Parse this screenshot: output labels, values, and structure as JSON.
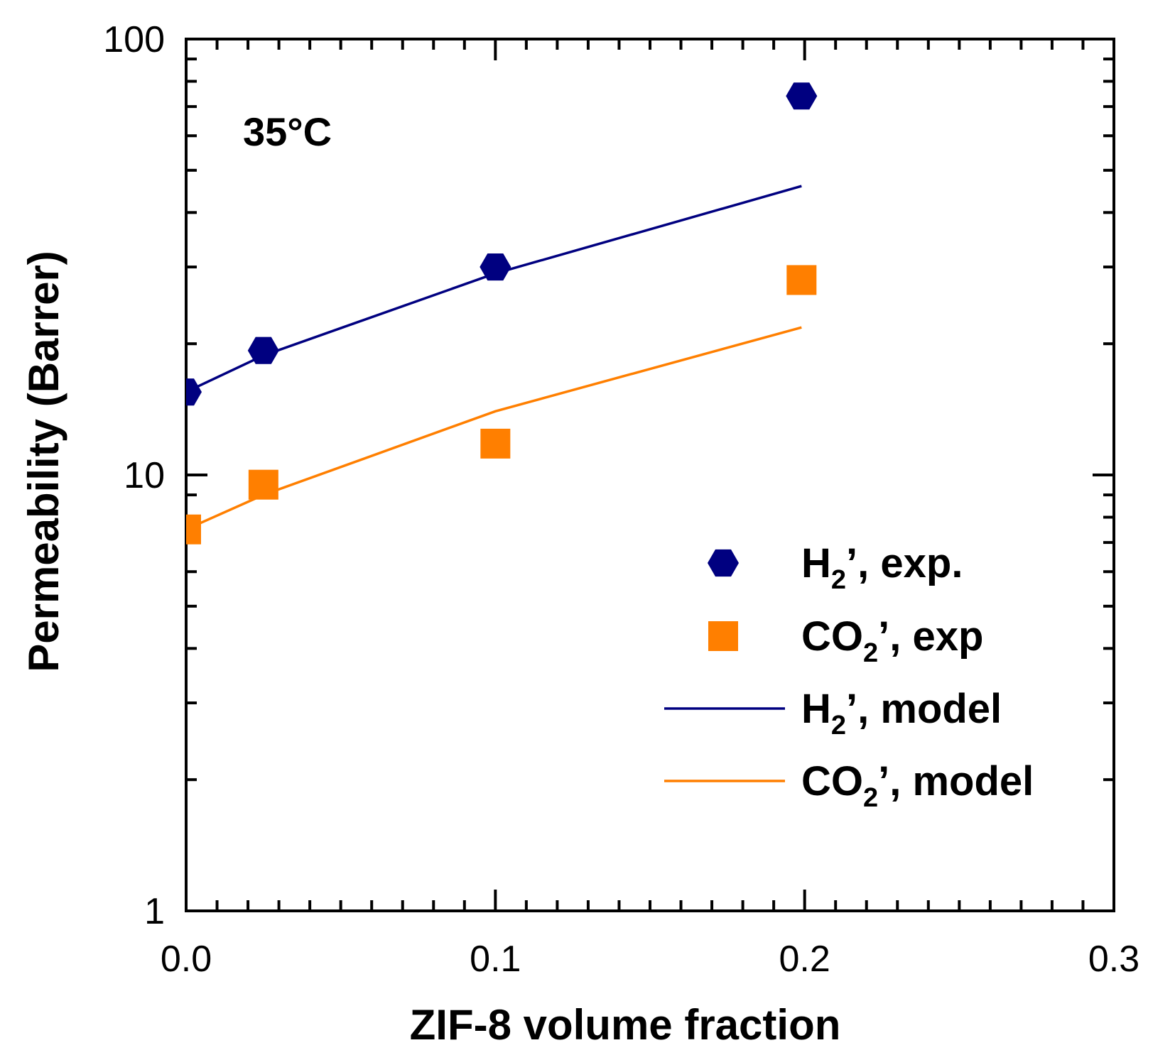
{
  "chart_data": {
    "type": "scatter",
    "title": "",
    "xlabel": "ZIF-8 volume fraction",
    "ylabel": "Permeability (Barrer)",
    "xlim": [
      0.0,
      0.3
    ],
    "ylim": [
      1,
      100
    ],
    "yscale": "log",
    "x_ticks": [
      "0.0",
      "0.1",
      "0.2",
      "0.3"
    ],
    "y_ticks": [
      "1",
      "10",
      "100"
    ],
    "annotation": "35°C",
    "grid": false,
    "legend_position": "right",
    "series": [
      {
        "name": "H2, exp.",
        "legend": {
          "base": "H",
          "sub": "2",
          "rest": "’, exp."
        },
        "kind": "markers",
        "marker": "hexagon",
        "color": "#000080",
        "x": [
          0.0,
          0.025,
          0.1,
          0.199
        ],
        "y": [
          15.5,
          19.3,
          30.0,
          74.0
        ]
      },
      {
        "name": "CO2, exp",
        "legend": {
          "base": "CO",
          "sub": "2",
          "rest": "’, exp"
        },
        "kind": "markers",
        "marker": "square",
        "color": "#ff7f00",
        "x": [
          0.0,
          0.025,
          0.1,
          0.199
        ],
        "y": [
          7.5,
          9.5,
          11.8,
          28.0
        ]
      },
      {
        "name": "H2, model",
        "legend": {
          "base": "H",
          "sub": "2",
          "rest": "’, model"
        },
        "kind": "line",
        "color": "#000080",
        "x": [
          0.0,
          0.025,
          0.1,
          0.199
        ],
        "y": [
          15.5,
          18.8,
          29.0,
          46.0
        ]
      },
      {
        "name": "CO2, model",
        "legend": {
          "base": "CO",
          "sub": "2",
          "rest": "’, model"
        },
        "kind": "line",
        "color": "#ff7f00",
        "x": [
          0.0,
          0.025,
          0.1,
          0.199
        ],
        "y": [
          7.5,
          9.0,
          14.0,
          21.8
        ]
      }
    ]
  }
}
